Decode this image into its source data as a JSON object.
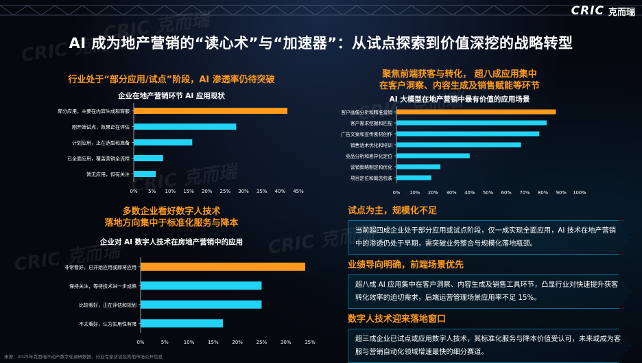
{
  "header": {
    "logo_mark": "CRIC",
    "logo_cn": "克而瑞",
    "main_title": "AI 成为地产营销的“读心术”与“加速器”：从试点探索到价值深挖的战略转型"
  },
  "watermark_text": "CRIC 克而瑞",
  "colors": {
    "orange": "#ff9a1f",
    "cyan": "#21d4f5"
  },
  "section1": {
    "title": "行业处于“部分应用/试点”阶段，AI 渗透率仍待突破"
  },
  "section2": {
    "title_line1": "聚焦前端获客与转化， 超八成应用集中",
    "title_line2": "在客户洞察、内容生成及销售赋能等环节"
  },
  "section3": {
    "title_line1": "多数企业看好数字人技术",
    "title_line2": "落地方向集中于标准化服务与降本"
  },
  "chart_data": [
    {
      "type": "bar",
      "orientation": "horizontal",
      "title": "企业在地产营销环节 AI 应用现状",
      "categories": [
        "部分应用，主要在内容生成和客服",
        "刚开始试点，效果正在评估",
        "计划应用，正在选型和准备",
        "已全面应用，覆盖营销全流程",
        "暂无应用，但有关注"
      ],
      "values": [
        42,
        28,
        16,
        8,
        6
      ],
      "highlight_index": 0,
      "xlim": [
        0,
        45
      ],
      "ticks": [
        "0%",
        "5%",
        "10%",
        "15%",
        "20%",
        "25%",
        "30%",
        "35%",
        "40%",
        "45%"
      ]
    },
    {
      "type": "bar",
      "orientation": "horizontal",
      "title": "AI 大模型在地产营销中最有价值的应用场景",
      "categories": [
        "客户画像分析和精准营销",
        "客户需求挖掘和匹配",
        "广告文案和宣传素材创作",
        "销售话术优化和培训",
        "竞品分析和差异化定位",
        "营销策略制定和优化",
        "项目定位和概念包装"
      ],
      "values": [
        87,
        82,
        78,
        68,
        40,
        24,
        19
      ],
      "highlight_index": 0,
      "xlim": [
        0,
        100
      ],
      "ticks": [
        "0%",
        "10%",
        "20%",
        "30%",
        "40%",
        "50%",
        "60%",
        "70%",
        "80%",
        "90%",
        "100%"
      ]
    },
    {
      "type": "bar",
      "orientation": "horizontal",
      "title": "企业对 AI 数字人技术在房地产营销中的应用",
      "categories": [
        "非常看好，已开始应用或即将应用",
        "保持关注，等待技术进一步成熟",
        "比较看好，正在评估和规划",
        "不太看好，认为实用性有限"
      ],
      "values": [
        34,
        25,
        25,
        17
      ],
      "highlight_index": 0,
      "xlim": [
        0,
        35
      ],
      "ticks": [
        "0%",
        "5%",
        "10%",
        "15%",
        "20%",
        "25%",
        "30%",
        "35%"
      ]
    }
  ],
  "cards": [
    {
      "title": "试点为主，规模化不足",
      "body": "当前超四成企业处于部分应用或试点阶段，仅一成实现全面应用，AI 技术在地产营销中的渗透仍处于早期，需突破业务整合与规模化落地瓶颈。"
    },
    {
      "title": "业绩导向明确，前端场景优先",
      "body": "超八成 AI 应用集中在客户洞察、内容生成及销售工具环节，凸显行业对快速提升获客转化效率的迫切需求，后端运营管理场景应用率不足 15%。"
    },
    {
      "title": "数字人技术迎来落地窗口",
      "body": "超三成企业已试点或应用数字人技术，其标准化服务与降本价值受认可，未来或成为客服与营销自动化领域增速最快的细分赛道。"
    }
  ],
  "source": "来源：2025年克而瑞不动产数字化调研数据、行业专家访谈及其他市场公开信息"
}
